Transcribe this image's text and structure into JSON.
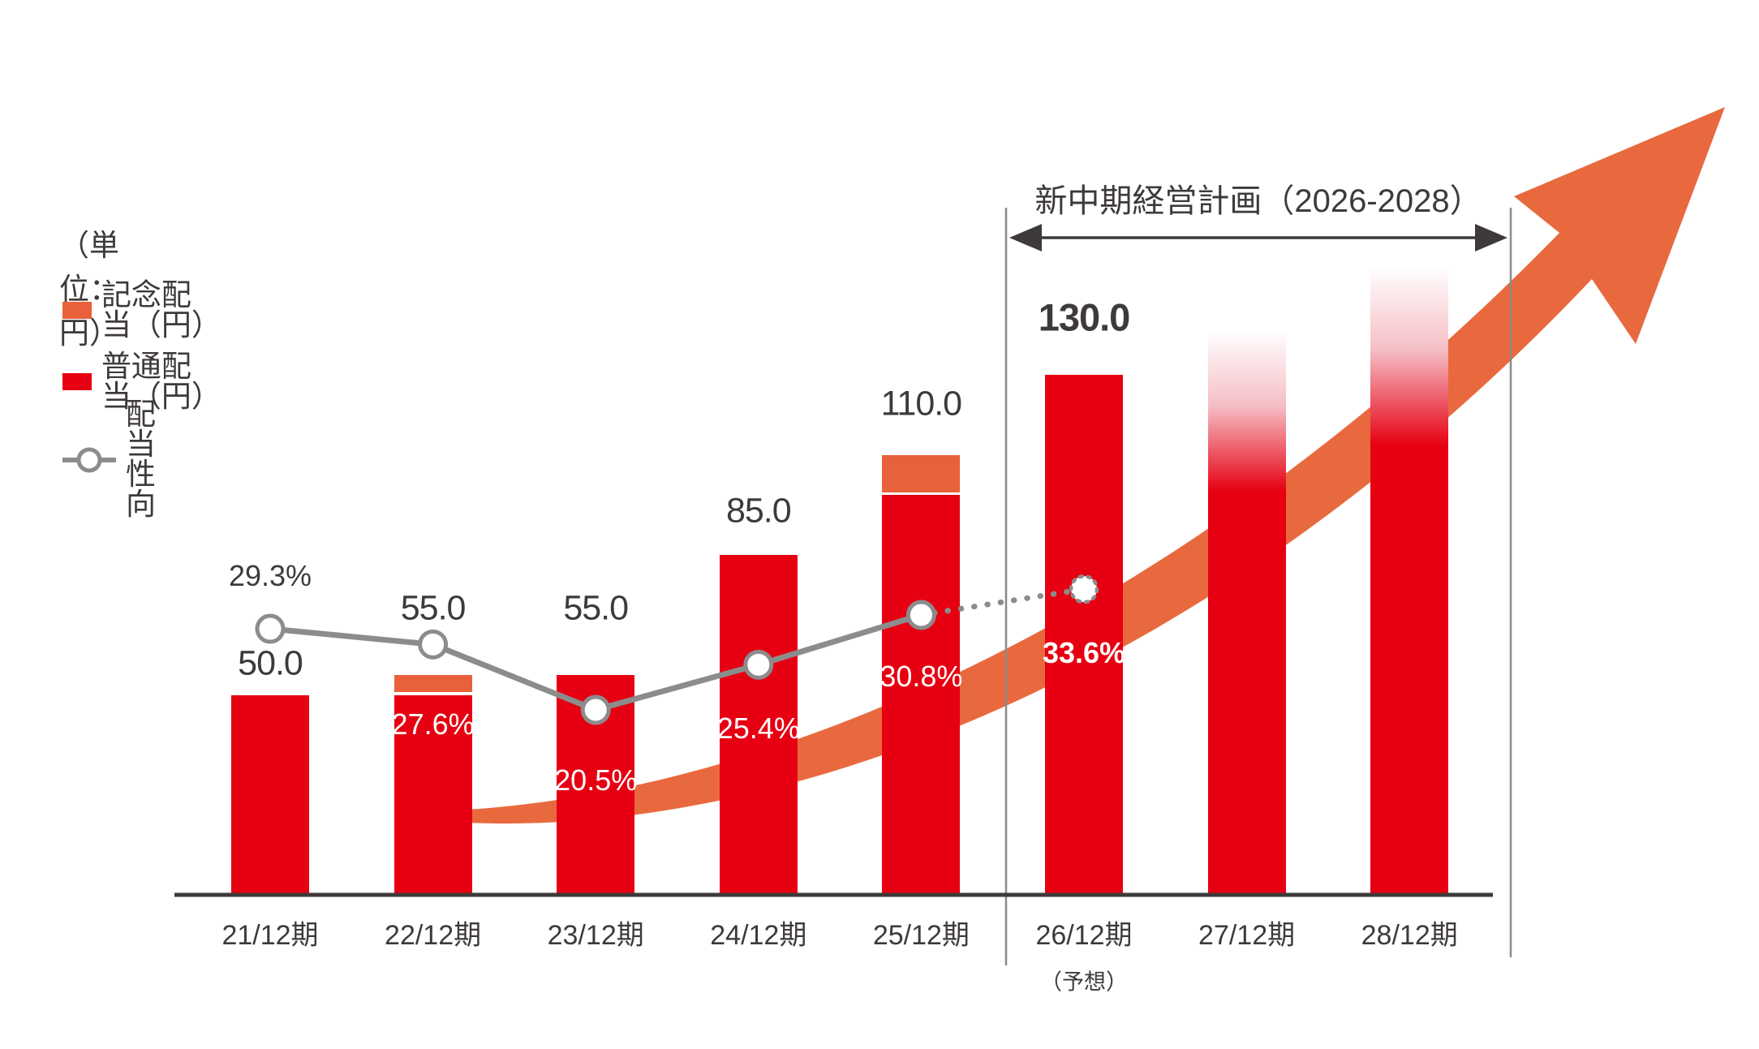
{
  "header": {
    "unit_note": "（単位：円）",
    "plan_label": "新中期経営計画（2026-2028）"
  },
  "legend": {
    "items": [
      {
        "label": "記念配当（円）",
        "swatch_color": "#e8613b",
        "type": "bar"
      },
      {
        "label": "普通配当（円）",
        "swatch_color": "#e60012",
        "type": "bar"
      },
      {
        "label": "配当性向",
        "swatch_color": "#8c8c8c",
        "type": "line-marker"
      }
    ]
  },
  "labels": {
    "forecast_note": "（予想）"
  },
  "colors": {
    "ordinary_red": "#e60012",
    "commemorative_orange": "#e8613b",
    "arrow_orange": "#e9693f",
    "payout_gray": "#8c8c8c",
    "text_dark": "#3e3a39"
  },
  "chart_data": {
    "type": "bar",
    "subtype": "stacked-bar-with-line",
    "title": "新中期経営計画（2026-2028）",
    "unit": "円",
    "categories": [
      "21/12期",
      "22/12期",
      "23/12期",
      "24/12期",
      "25/12期",
      "26/12期",
      "27/12期",
      "28/12期"
    ],
    "series": [
      {
        "name": "普通配当（円）",
        "type": "bar",
        "color": "#e60012",
        "values": [
          50,
          50,
          55,
          85,
          100,
          130,
          null,
          null
        ]
      },
      {
        "name": "記念配当（円）",
        "type": "bar",
        "color": "#e8613b",
        "values": [
          0,
          5,
          0,
          0,
          10,
          0,
          null,
          null
        ]
      },
      {
        "name": "配当性向",
        "type": "line",
        "unit": "%",
        "color": "#8c8c8c",
        "values": [
          29.3,
          27.6,
          20.5,
          25.4,
          30.8,
          33.6,
          null,
          null
        ],
        "forecast_from_index": 5
      }
    ],
    "total_labels": [
      "50.0",
      "55.0",
      "55.0",
      "85.0",
      "110.0",
      "130.0",
      "",
      ""
    ],
    "pct_labels": [
      "29.3%",
      "27.6%",
      "20.5%",
      "25.4%",
      "30.8%",
      "33.6%"
    ],
    "forecast_category": "26/12期",
    "future_bars": [
      {
        "category": "27/12期",
        "style": "gradient-fade",
        "value_shown": null
      },
      {
        "category": "28/12期",
        "style": "gradient-fade",
        "value_shown": null
      }
    ],
    "plan_span": {
      "label": "新中期経営計画（2026-2028）",
      "from": "26/12期",
      "to": "28/12期"
    },
    "ylim_yen": [
      0,
      180
    ],
    "grid": false,
    "legend_position": "top-left"
  }
}
